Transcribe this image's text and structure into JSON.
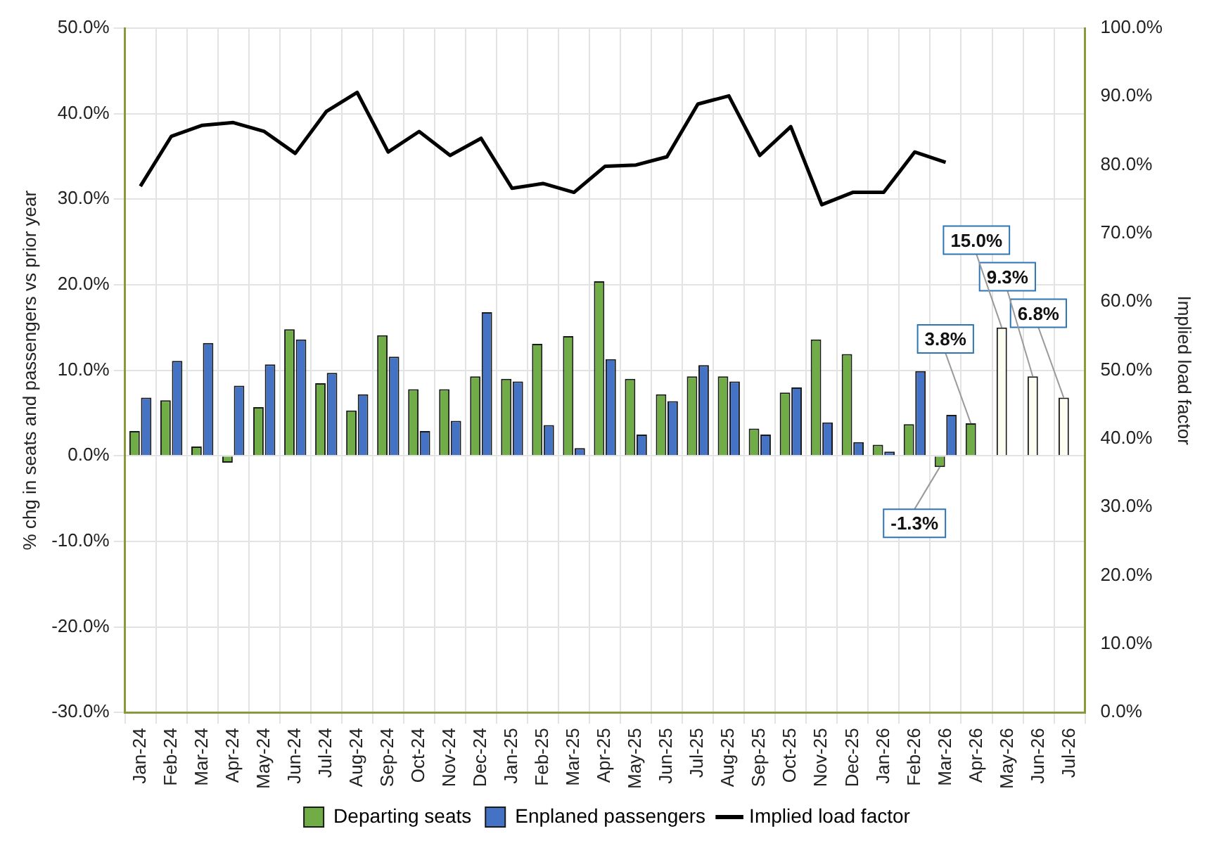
{
  "chart_data": {
    "type": "bar",
    "categories": [
      "Jan-24",
      "Feb-24",
      "Mar-24",
      "Apr-24",
      "May-24",
      "Jun-24",
      "Jul-24",
      "Aug-24",
      "Sep-24",
      "Oct-24",
      "Nov-24",
      "Dec-24",
      "Jan-25",
      "Feb-25",
      "Mar-25",
      "Apr-25",
      "May-25",
      "Jun-25",
      "Jul-25",
      "Aug-25",
      "Sep-25",
      "Oct-25",
      "Nov-25",
      "Dec-25",
      "Jan-26",
      "Feb-26",
      "Mar-26",
      "Apr-26",
      "May-26",
      "Jun-26",
      "Jul-26"
    ],
    "ylabel": "% chg in seats and passengers vs prior year",
    "y2label": "Implied load factor",
    "ylim": [
      -30,
      50
    ],
    "yticks": [
      {
        "value": -30,
        "label": "-30.0%"
      },
      {
        "value": -20,
        "label": "-20.0%"
      },
      {
        "value": -10,
        "label": "-10.0%"
      },
      {
        "value": 0,
        "label": "0.0%"
      },
      {
        "value": 10,
        "label": "10.0%"
      },
      {
        "value": 20,
        "label": "20.0%"
      },
      {
        "value": 30,
        "label": "30.0%"
      },
      {
        "value": 40,
        "label": "40.0%"
      },
      {
        "value": 50,
        "label": "50.0%"
      }
    ],
    "y2lim": [
      0,
      100
    ],
    "y2ticks": [
      {
        "value": 0,
        "label": "0.0%"
      },
      {
        "value": 10,
        "label": "10.0%"
      },
      {
        "value": 20,
        "label": "20.0%"
      },
      {
        "value": 30,
        "label": "30.0%"
      },
      {
        "value": 40,
        "label": "40.0%"
      },
      {
        "value": 50,
        "label": "50.0%"
      },
      {
        "value": 60,
        "label": "60.0%"
      },
      {
        "value": 70,
        "label": "70.0%"
      },
      {
        "value": 80,
        "label": "80.0%"
      },
      {
        "value": 90,
        "label": "90.0%"
      },
      {
        "value": 100,
        "label": "100.0%"
      }
    ],
    "grid": true,
    "legend": "bottom",
    "series": [
      {
        "name": "Departing seats",
        "color": "#70ad47",
        "colors": [
          "#70ad47",
          "#70ad47",
          "#70ad47",
          "#70ad47",
          "#70ad47",
          "#70ad47",
          "#70ad47",
          "#70ad47",
          "#70ad47",
          "#70ad47",
          "#70ad47",
          "#70ad47",
          "#70ad47",
          "#70ad47",
          "#70ad47",
          "#70ad47",
          "#70ad47",
          "#70ad47",
          "#70ad47",
          "#70ad47",
          "#70ad47",
          "#70ad47",
          "#70ad47",
          "#70ad47",
          "#70ad47",
          "#70ad47",
          "#70ad47",
          "#70ad47",
          "#fdfdf2",
          "#fdfdf2",
          "#fdfdf2"
        ],
        "values": [
          2.9,
          6.5,
          1.1,
          -0.8,
          5.7,
          14.8,
          8.5,
          5.3,
          14.1,
          7.8,
          7.8,
          9.3,
          9.0,
          13.1,
          14.0,
          20.4,
          9.0,
          7.2,
          9.3,
          9.3,
          3.2,
          7.4,
          13.6,
          11.9,
          1.3,
          3.7,
          -1.3,
          3.8,
          15.0,
          9.3,
          6.8
        ],
        "value_labels": [
          null,
          null,
          null,
          null,
          null,
          null,
          null,
          null,
          null,
          null,
          null,
          null,
          null,
          null,
          null,
          null,
          null,
          null,
          null,
          null,
          null,
          null,
          null,
          null,
          null,
          null,
          "-1.3%",
          "3.8%",
          "15.0%",
          "9.3%",
          "6.8%"
        ]
      },
      {
        "name": "Enplaned passengers",
        "color": "#4472c4",
        "values": [
          6.8,
          11.1,
          13.2,
          8.2,
          10.7,
          13.6,
          9.7,
          7.2,
          11.6,
          2.9,
          4.1,
          16.8,
          8.7,
          3.6,
          0.9,
          11.3,
          2.5,
          6.4,
          10.6,
          8.7,
          2.5,
          8.0,
          3.9,
          1.6,
          0.5,
          9.9,
          4.8,
          null,
          null,
          null,
          null
        ]
      },
      {
        "name": "Implied load factor",
        "type": "line",
        "axis": "y2",
        "color": "#000000",
        "marker": "none",
        "line_style": "solid",
        "values": [
          76.9,
          84.2,
          85.8,
          86.2,
          84.9,
          81.7,
          87.8,
          90.6,
          81.9,
          84.9,
          81.4,
          83.9,
          76.6,
          77.3,
          76.0,
          79.8,
          80.0,
          81.2,
          88.9,
          90.1,
          81.4,
          85.6,
          74.2,
          76.0,
          76.0,
          81.9,
          80.4,
          null,
          null,
          null,
          null
        ]
      }
    ]
  }
}
